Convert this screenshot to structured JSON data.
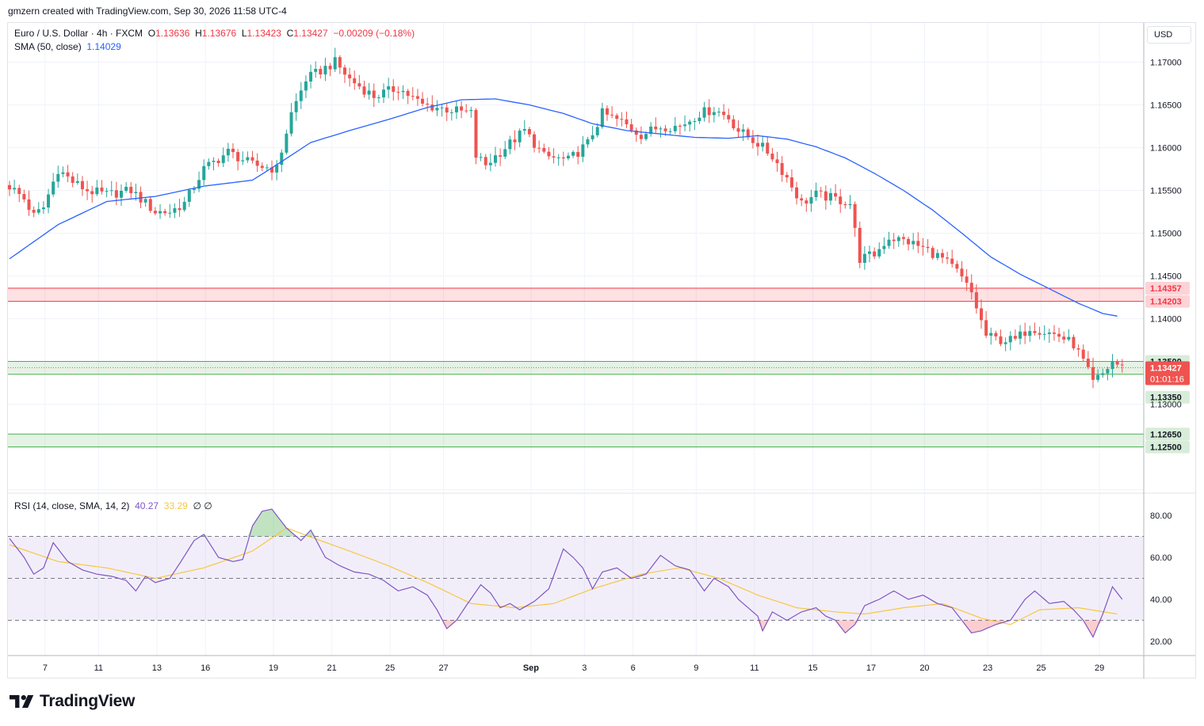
{
  "header": {
    "credit": "gmzern created with TradingView.com, Sep 30, 2026 11:58 UTC-4"
  },
  "legend": {
    "symbol": "Euro / U.S. Dollar · 4h · FXCM",
    "open_label": "O",
    "open": "1.13636",
    "high_label": "H",
    "high": "1.13676",
    "low_label": "L",
    "low": "1.13423",
    "close_label": "C",
    "close": "1.13427",
    "change": "−0.00209 (−0.18%)",
    "sma_label": "SMA (50, close)",
    "sma_value": "1.14029",
    "rsi_label": "RSI (14, close, SMA, 14, 2)",
    "rsi_value": "40.27",
    "rsi_ma_value": "33.29",
    "rsi_extra": "∅ ∅"
  },
  "currency": "USD",
  "logo": {
    "text": "TradingView",
    "icon": "tradingview-logo-icon"
  },
  "colors": {
    "up": "#26a69a",
    "down": "#ef5350",
    "sma": "#2962ff",
    "rsi": "#7e57c2",
    "rsi_ma": "#f7c744",
    "resistance": "#f23645",
    "support": "#4caf50"
  },
  "price_labels": {
    "zone_red_top": "1.14357",
    "zone_red_bottom": "1.14203",
    "zone_green_top": "1.13500",
    "zone_green_bottom": "1.13350",
    "current": "1.13427",
    "countdown": "01:01:16",
    "zone_green2_top": "1.12650",
    "zone_green2_bottom": "1.12500"
  },
  "chart_data": [
    {
      "type": "candlestick",
      "title": "Euro / U.S. Dollar · 4h · FXCM",
      "y_ticks": [
        "1.17000",
        "1.16500",
        "1.16000",
        "1.15500",
        "1.15000",
        "1.14500",
        "1.14000",
        "1.13000"
      ],
      "ylim": [
        1.122,
        1.176
      ],
      "x_ticks": [
        "7",
        "11",
        "13",
        "16",
        "19",
        "21",
        "25",
        "27",
        "Sep",
        "3",
        "6",
        "9",
        "11",
        "15",
        "17",
        "20",
        "23",
        "25",
        "29"
      ],
      "close_anchors": [
        [
          0,
          1.1555
        ],
        [
          3,
          1.154
        ],
        [
          5,
          1.152
        ],
        [
          7,
          1.153
        ],
        [
          10,
          1.1575
        ],
        [
          13,
          1.156
        ],
        [
          16,
          1.155
        ],
        [
          20,
          1.1545
        ],
        [
          25,
          1.155
        ],
        [
          28,
          1.1535
        ],
        [
          30,
          1.1525
        ],
        [
          33,
          1.1525
        ],
        [
          36,
          1.1535
        ],
        [
          40,
          1.1575
        ],
        [
          45,
          1.1595
        ],
        [
          50,
          1.158
        ],
        [
          55,
          1.1575
        ],
        [
          58,
          1.164
        ],
        [
          61,
          1.168
        ],
        [
          64,
          1.169
        ],
        [
          67,
          1.17
        ],
        [
          70,
          1.168
        ],
        [
          75,
          1.166
        ],
        [
          80,
          1.167
        ],
        [
          85,
          1.165
        ],
        [
          90,
          1.1645
        ],
        [
          95,
          1.164
        ],
        [
          96,
          1.159
        ],
        [
          98,
          1.158
        ],
        [
          102,
          1.16
        ],
        [
          106,
          1.162
        ],
        [
          110,
          1.159
        ],
        [
          115,
          1.1585
        ],
        [
          119,
          1.1605
        ],
        [
          122,
          1.164
        ],
        [
          126,
          1.163
        ],
        [
          130,
          1.1615
        ],
        [
          134,
          1.1625
        ],
        [
          138,
          1.1625
        ],
        [
          142,
          1.164
        ],
        [
          145,
          1.1645
        ],
        [
          148,
          1.1635
        ],
        [
          150,
          1.162
        ],
        [
          154,
          1.1605
        ],
        [
          157,
          1.159
        ],
        [
          160,
          1.1565
        ],
        [
          163,
          1.1535
        ],
        [
          166,
          1.1545
        ],
        [
          170,
          1.154
        ],
        [
          173,
          1.1535
        ],
        [
          175,
          1.147
        ],
        [
          178,
          1.1475
        ],
        [
          181,
          1.1495
        ],
        [
          185,
          1.149
        ],
        [
          189,
          1.148
        ],
        [
          192,
          1.147
        ],
        [
          195,
          1.1455
        ],
        [
          198,
          1.143
        ],
        [
          201,
          1.138
        ],
        [
          204,
          1.1375
        ],
        [
          207,
          1.1375
        ],
        [
          210,
          1.139
        ],
        [
          213,
          1.1385
        ],
        [
          216,
          1.138
        ],
        [
          219,
          1.137
        ],
        [
          221,
          1.135
        ],
        [
          223,
          1.1325
        ],
        [
          225,
          1.1335
        ],
        [
          227,
          1.135
        ],
        [
          229,
          1.1343
        ]
      ],
      "sma": {
        "name": "SMA (50, close)",
        "anchors": [
          [
            0,
            1.147
          ],
          [
            10,
            1.151
          ],
          [
            20,
            1.1537
          ],
          [
            30,
            1.1543
          ],
          [
            40,
            1.1555
          ],
          [
            50,
            1.1562
          ],
          [
            55,
            1.158
          ],
          [
            62,
            1.1606
          ],
          [
            70,
            1.162
          ],
          [
            78,
            1.1633
          ],
          [
            86,
            1.1647
          ],
          [
            93,
            1.1656
          ],
          [
            100,
            1.1657
          ],
          [
            107,
            1.165
          ],
          [
            114,
            1.164
          ],
          [
            120,
            1.1628
          ],
          [
            127,
            1.162
          ],
          [
            134,
            1.1616
          ],
          [
            141,
            1.1612
          ],
          [
            148,
            1.1611
          ],
          [
            154,
            1.1614
          ],
          [
            160,
            1.161
          ],
          [
            166,
            1.1601
          ],
          [
            172,
            1.1588
          ],
          [
            178,
            1.157
          ],
          [
            184,
            1.155
          ],
          [
            190,
            1.1527
          ],
          [
            196,
            1.15
          ],
          [
            202,
            1.1472
          ],
          [
            208,
            1.1452
          ],
          [
            214,
            1.1435
          ],
          [
            220,
            1.1418
          ],
          [
            225,
            1.1406
          ],
          [
            228,
            1.1403
          ]
        ]
      },
      "zones": [
        {
          "from": 1.14203,
          "to": 1.14357,
          "color": "resistance"
        },
        {
          "from": 1.1335,
          "to": 1.135,
          "color": "support"
        },
        {
          "from": 1.125,
          "to": 1.1265,
          "color": "support"
        }
      ]
    },
    {
      "type": "line",
      "title": "RSI (14, close, SMA, 14, 2)",
      "y_ticks": [
        "80.00",
        "60.00",
        "40.00",
        "20.00"
      ],
      "ylim": [
        12,
        92
      ],
      "bands": [
        70,
        50,
        30
      ],
      "rsi_anchors": [
        [
          0,
          69
        ],
        [
          3,
          60
        ],
        [
          5,
          52
        ],
        [
          7,
          55
        ],
        [
          9,
          67
        ],
        [
          12,
          58
        ],
        [
          15,
          54
        ],
        [
          18,
          52
        ],
        [
          21,
          51
        ],
        [
          24,
          49
        ],
        [
          26,
          44
        ],
        [
          28,
          51
        ],
        [
          30,
          48
        ],
        [
          33,
          50
        ],
        [
          35,
          57
        ],
        [
          38,
          68
        ],
        [
          40,
          71
        ],
        [
          43,
          60
        ],
        [
          46,
          58
        ],
        [
          48,
          59
        ],
        [
          50,
          75
        ],
        [
          52,
          82
        ],
        [
          54,
          83
        ],
        [
          57,
          74
        ],
        [
          60,
          68
        ],
        [
          62,
          73
        ],
        [
          65,
          60
        ],
        [
          68,
          56
        ],
        [
          71,
          53
        ],
        [
          74,
          52
        ],
        [
          77,
          49
        ],
        [
          80,
          44
        ],
        [
          83,
          46
        ],
        [
          86,
          42
        ],
        [
          88,
          35
        ],
        [
          90,
          26
        ],
        [
          92,
          30
        ],
        [
          94,
          37
        ],
        [
          97,
          47
        ],
        [
          99,
          43
        ],
        [
          101,
          36
        ],
        [
          103,
          38
        ],
        [
          105,
          35
        ],
        [
          108,
          39
        ],
        [
          111,
          45
        ],
        [
          114,
          64
        ],
        [
          116,
          60
        ],
        [
          118,
          55
        ],
        [
          120,
          45
        ],
        [
          122,
          53
        ],
        [
          125,
          55
        ],
        [
          128,
          50
        ],
        [
          131,
          52
        ],
        [
          134,
          61
        ],
        [
          137,
          56
        ],
        [
          140,
          54
        ],
        [
          143,
          44
        ],
        [
          145,
          50
        ],
        [
          148,
          46
        ],
        [
          150,
          40
        ],
        [
          152,
          36
        ],
        [
          154,
          32
        ],
        [
          155,
          25
        ],
        [
          157,
          34
        ],
        [
          160,
          30
        ],
        [
          163,
          34
        ],
        [
          166,
          36
        ],
        [
          168,
          32
        ],
        [
          170,
          30
        ],
        [
          172,
          24
        ],
        [
          174,
          28
        ],
        [
          176,
          37
        ],
        [
          179,
          40
        ],
        [
          182,
          44
        ],
        [
          185,
          40
        ],
        [
          188,
          42
        ],
        [
          191,
          38
        ],
        [
          194,
          36
        ],
        [
          196,
          30
        ],
        [
          198,
          24
        ],
        [
          200,
          25
        ],
        [
          203,
          28
        ],
        [
          206,
          30
        ],
        [
          209,
          40
        ],
        [
          211,
          44
        ],
        [
          214,
          38
        ],
        [
          217,
          39
        ],
        [
          219,
          35
        ],
        [
          221,
          30
        ],
        [
          223,
          22
        ],
        [
          225,
          33
        ],
        [
          227,
          46
        ],
        [
          229,
          40
        ]
      ],
      "rsi_ma_anchors": [
        [
          0,
          66
        ],
        [
          10,
          58
        ],
        [
          20,
          55
        ],
        [
          30,
          50
        ],
        [
          40,
          55
        ],
        [
          50,
          63
        ],
        [
          57,
          74
        ],
        [
          64,
          68
        ],
        [
          70,
          63
        ],
        [
          78,
          56
        ],
        [
          86,
          48
        ],
        [
          95,
          38
        ],
        [
          104,
          36
        ],
        [
          112,
          38
        ],
        [
          120,
          45
        ],
        [
          130,
          52
        ],
        [
          138,
          55
        ],
        [
          146,
          50
        ],
        [
          154,
          42
        ],
        [
          162,
          36
        ],
        [
          170,
          34
        ],
        [
          176,
          33
        ],
        [
          184,
          36
        ],
        [
          192,
          38
        ],
        [
          200,
          31
        ],
        [
          206,
          28
        ],
        [
          212,
          35
        ],
        [
          220,
          36
        ],
        [
          228,
          33
        ]
      ]
    }
  ]
}
